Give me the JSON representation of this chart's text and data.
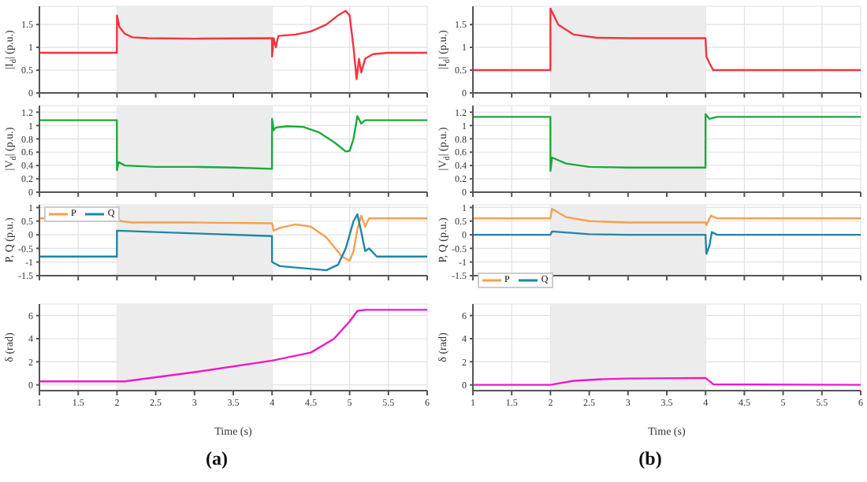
{
  "chart_data": [
    {
      "type": "line",
      "ylabel": "|I$_{d}$| (p.u.)",
      "xlim": [
        1,
        6
      ],
      "xticks": [
        1,
        1.5,
        2,
        2.5,
        3,
        3.5,
        4,
        4.5,
        5,
        5.5,
        6
      ],
      "ylim": [
        0,
        1.9
      ],
      "yticks": [
        0,
        0.5,
        1,
        1.5
      ],
      "grid": true,
      "tick_labels": "y",
      "bands": [
        {
          "axis": "x",
          "from": 2,
          "to": 4,
          "color": "#ececec"
        }
      ],
      "series": [
        {
          "color": "#f5333f",
          "x": [
            1,
            1.999,
            2,
            2.03,
            2.1,
            2.2,
            2.4,
            3,
            3.999,
            4,
            4.02,
            4.05,
            4.08,
            4.3,
            4.5,
            4.7,
            4.85,
            4.95,
            5.0,
            5.05,
            5.09,
            5.12,
            5.15,
            5.2,
            5.3,
            5.5,
            6
          ],
          "values": [
            0.88,
            0.88,
            1.7,
            1.45,
            1.3,
            1.22,
            1.2,
            1.19,
            1.2,
            0.8,
            1.2,
            1.0,
            1.25,
            1.28,
            1.35,
            1.5,
            1.7,
            1.8,
            1.7,
            1.0,
            0.3,
            0.75,
            0.45,
            0.75,
            0.85,
            0.88,
            0.88
          ]
        }
      ]
    },
    {
      "type": "line",
      "ylabel": "|V$_{d}$| (p.u.)",
      "xlim": [
        1,
        6
      ],
      "xticks": [
        1,
        1.5,
        2,
        2.5,
        3,
        3.5,
        4,
        4.5,
        5,
        5.5,
        6
      ],
      "ylim": [
        0,
        1.3
      ],
      "yticks": [
        0,
        0.2,
        0.4,
        0.6,
        0.8,
        1,
        1.2
      ],
      "grid": true,
      "tick_labels": "y",
      "bands": [
        {
          "axis": "x",
          "from": 2,
          "to": 4,
          "color": "#ececec"
        }
      ],
      "series": [
        {
          "color": "#1aaa3a",
          "x": [
            1,
            1.999,
            2,
            2.02,
            2.1,
            2.5,
            3,
            3.5,
            3.999,
            4,
            4.02,
            4.05,
            4.2,
            4.4,
            4.6,
            4.8,
            4.95,
            5.0,
            5.05,
            5.1,
            5.15,
            5.2,
            6
          ],
          "values": [
            1.08,
            1.08,
            0.33,
            0.45,
            0.4,
            0.38,
            0.38,
            0.37,
            0.35,
            1.1,
            0.93,
            0.97,
            0.99,
            0.98,
            0.9,
            0.75,
            0.61,
            0.62,
            0.8,
            1.14,
            1.03,
            1.08,
            1.08
          ]
        }
      ]
    },
    {
      "type": "line",
      "ylabel": "P, Q (p.u.)",
      "xlim": [
        1,
        6
      ],
      "xticks": [
        1,
        1.5,
        2,
        2.5,
        3,
        3.5,
        4,
        4.5,
        5,
        5.5,
        6
      ],
      "ylim": [
        -1.5,
        1.1
      ],
      "yticks": [
        -1.5,
        -1,
        -0.5,
        0,
        0.5,
        1
      ],
      "grid": true,
      "tick_labels": "y",
      "legend": "top left",
      "bands": [
        {
          "axis": "x",
          "from": 2,
          "to": 4,
          "color": "#ececec"
        }
      ],
      "series": [
        {
          "name": "P",
          "color": "#f6a04d",
          "x": [
            1,
            2,
            2.05,
            2.2,
            3,
            4,
            4.02,
            4.1,
            4.3,
            4.5,
            4.7,
            4.9,
            5.0,
            5.05,
            5.1,
            5.15,
            5.2,
            5.25,
            6
          ],
          "values": [
            0.6,
            0.6,
            0.5,
            0.45,
            0.45,
            0.42,
            0.15,
            0.25,
            0.38,
            0.3,
            -0.1,
            -0.8,
            -0.95,
            -0.6,
            0.2,
            0.7,
            0.3,
            0.6,
            0.6
          ]
        },
        {
          "name": "Q",
          "color": "#1e86a8",
          "x": [
            1,
            1.999,
            2,
            3,
            3.999,
            4,
            4.1,
            4.5,
            4.7,
            4.85,
            4.95,
            5.05,
            5.1,
            5.15,
            5.2,
            5.25,
            5.35,
            6
          ],
          "values": [
            -0.8,
            -0.8,
            0.15,
            0.05,
            -0.05,
            -1.0,
            -1.15,
            -1.25,
            -1.3,
            -1.1,
            -0.5,
            0.5,
            0.75,
            0.1,
            -0.6,
            -0.5,
            -0.8,
            -0.8
          ]
        }
      ]
    },
    {
      "type": "line",
      "ylabel": "δ (rad)",
      "xlabel": "Time (s)",
      "annotations": [
        "(a)"
      ],
      "xlim": [
        1,
        6
      ],
      "xticks": [
        1,
        1.5,
        2,
        2.5,
        3,
        3.5,
        4,
        4.5,
        5,
        5.5,
        6
      ],
      "ylim": [
        -0.5,
        7
      ],
      "yticks": [
        0,
        2,
        4,
        6
      ],
      "grid": true,
      "bands": [
        {
          "axis": "x",
          "from": 2,
          "to": 4,
          "color": "#ececec"
        }
      ],
      "series": [
        {
          "color": "#f018c8",
          "x": [
            1,
            2.1,
            3,
            4,
            4.5,
            4.8,
            5.0,
            5.1,
            5.2,
            6
          ],
          "values": [
            0.3,
            0.3,
            1.1,
            2.1,
            2.8,
            4.0,
            5.5,
            6.4,
            6.5,
            6.5
          ]
        }
      ]
    },
    {
      "type": "line",
      "ylabel": "|I$_{d}$| (p.u.)",
      "xlim": [
        1,
        6
      ],
      "xticks": [
        1,
        1.5,
        2,
        2.5,
        3,
        3.5,
        4,
        4.5,
        5,
        5.5,
        6
      ],
      "ylim": [
        0,
        1.9
      ],
      "yticks": [
        0,
        0.5,
        1,
        1.5
      ],
      "grid": true,
      "tick_labels": "y",
      "bands": [
        {
          "axis": "x",
          "from": 2,
          "to": 4,
          "color": "#ececec"
        }
      ],
      "series": [
        {
          "color": "#f5333f",
          "x": [
            1,
            1.999,
            2,
            2.1,
            2.3,
            2.6,
            3,
            3.999,
            4.01,
            4.05,
            4.1,
            6
          ],
          "values": [
            0.5,
            0.5,
            1.85,
            1.5,
            1.28,
            1.21,
            1.2,
            1.2,
            0.8,
            0.65,
            0.5,
            0.5
          ]
        }
      ]
    },
    {
      "type": "line",
      "ylabel": "|V$_{d}$| (p.u.)",
      "xlim": [
        1,
        6
      ],
      "xticks": [
        1,
        1.5,
        2,
        2.5,
        3,
        3.5,
        4,
        4.5,
        5,
        5.5,
        6
      ],
      "ylim": [
        0,
        1.3
      ],
      "yticks": [
        0,
        0.2,
        0.4,
        0.6,
        0.8,
        1,
        1.2
      ],
      "grid": true,
      "tick_labels": "y",
      "bands": [
        {
          "axis": "x",
          "from": 2,
          "to": 4,
          "color": "#ececec"
        }
      ],
      "series": [
        {
          "color": "#1aaa3a",
          "x": [
            1,
            1.999,
            2,
            2.02,
            2.2,
            2.5,
            3,
            3.999,
            4,
            4.05,
            4.15,
            6
          ],
          "values": [
            1.13,
            1.13,
            0.32,
            0.52,
            0.43,
            0.38,
            0.37,
            0.37,
            1.17,
            1.1,
            1.13,
            1.13
          ]
        }
      ]
    },
    {
      "type": "line",
      "ylabel": "P, Q (p.u.)",
      "xlim": [
        1,
        6
      ],
      "xticks": [
        1,
        1.5,
        2,
        2.5,
        3,
        3.5,
        4,
        4.5,
        5,
        5.5,
        6
      ],
      "ylim": [
        -1.5,
        1.1
      ],
      "yticks": [
        -1.5,
        -1,
        -0.5,
        0,
        0.5,
        1
      ],
      "grid": true,
      "tick_labels": "y",
      "legend": "bottom left",
      "bands": [
        {
          "axis": "x",
          "from": 2,
          "to": 4,
          "color": "#ececec"
        }
      ],
      "series": [
        {
          "name": "P",
          "color": "#f6a04d",
          "x": [
            1,
            1.999,
            2.02,
            2.2,
            2.5,
            3,
            3.999,
            4.01,
            4.07,
            4.15,
            6
          ],
          "values": [
            0.6,
            0.6,
            0.95,
            0.65,
            0.5,
            0.45,
            0.45,
            0.35,
            0.7,
            0.6,
            0.6
          ]
        },
        {
          "name": "Q",
          "color": "#1e86a8",
          "x": [
            1,
            1.999,
            2.02,
            2.5,
            3,
            3.999,
            4.01,
            4.05,
            4.08,
            4.15,
            6
          ],
          "values": [
            0,
            0,
            0.12,
            0.02,
            0,
            0,
            -0.7,
            -0.4,
            0.1,
            0,
            0
          ]
        }
      ]
    },
    {
      "type": "line",
      "ylabel": "δ (rad)",
      "xlabel": "Time (s)",
      "annotations": [
        "(b)"
      ],
      "xlim": [
        1,
        6
      ],
      "xticks": [
        1,
        1.5,
        2,
        2.5,
        3,
        3.5,
        4,
        4.5,
        5,
        5.5,
        6
      ],
      "ylim": [
        -0.5,
        7
      ],
      "yticks": [
        0,
        2,
        4,
        6
      ],
      "grid": true,
      "bands": [
        {
          "axis": "x",
          "from": 2,
          "to": 4,
          "color": "#ececec"
        }
      ],
      "series": [
        {
          "color": "#f018c8",
          "x": [
            1,
            2,
            2.3,
            2.7,
            3,
            3.999,
            4.1,
            6
          ],
          "values": [
            0,
            0,
            0.35,
            0.5,
            0.55,
            0.6,
            0.05,
            0
          ]
        }
      ]
    }
  ]
}
